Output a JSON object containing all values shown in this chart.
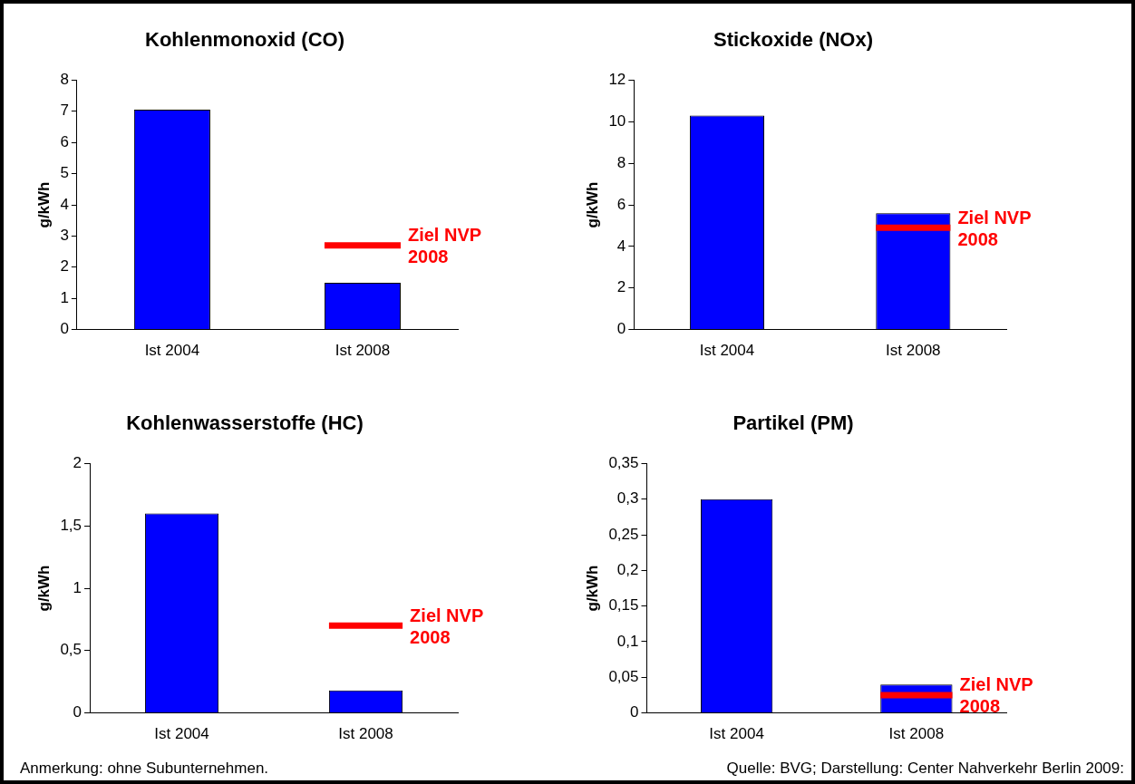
{
  "chart_data": [
    {
      "type": "bar",
      "title": "Kohlenmonoxid (CO)",
      "ylabel": "g/kWh",
      "categories": [
        "Ist 2004",
        "Ist 2008"
      ],
      "values": [
        7.05,
        1.5
      ],
      "color": "#0000ff",
      "ylim": [
        0,
        8
      ],
      "yticks": [
        0,
        1,
        2,
        3,
        4,
        5,
        6,
        7,
        8
      ],
      "grid": false,
      "legend": false,
      "ref_lines": [
        {
          "axis": "y",
          "value": 2.7,
          "label": "Ziel NVP 2008",
          "color": "#ff0000"
        }
      ]
    },
    {
      "type": "bar",
      "title": "Stickoxide (NOx)",
      "ylabel": "g/kWh",
      "categories": [
        "Ist 2004",
        "Ist 2008"
      ],
      "values": [
        10.3,
        5.6
      ],
      "color": "#0000ff",
      "ylim": [
        0,
        12
      ],
      "yticks": [
        0,
        2,
        4,
        6,
        8,
        10,
        12
      ],
      "grid": false,
      "legend": false,
      "ref_lines": [
        {
          "axis": "y",
          "value": 4.9,
          "label": "Ziel NVP 2008",
          "color": "#ff0000"
        }
      ]
    },
    {
      "type": "bar",
      "title": "Kohlenwasserstoffe (HC)",
      "ylabel": "g/kWh",
      "categories": [
        "Ist 2004",
        "Ist 2008"
      ],
      "values": [
        1.6,
        0.18
      ],
      "color": "#0000ff",
      "ylim": [
        0,
        2
      ],
      "yticks": [
        0,
        {
          "value": 0.5,
          "label": "0,5"
        },
        1,
        {
          "value": 1.5,
          "label": "1,5"
        },
        2
      ],
      "grid": false,
      "legend": false,
      "ref_lines": [
        {
          "axis": "y",
          "value": 0.7,
          "label": "Ziel NVP 2008",
          "color": "#ff0000"
        }
      ],
      "annotations": [
        "Anmerkung: ohne Subunternehmen."
      ]
    },
    {
      "type": "bar",
      "title": "Partikel (PM)",
      "ylabel": "g/kWh",
      "categories": [
        "Ist 2004",
        "Ist 2008"
      ],
      "values": [
        0.3,
        0.04
      ],
      "color": "#0000ff",
      "ylim": [
        0,
        0.35
      ],
      "yticks": [
        0,
        {
          "value": 0.05,
          "label": "0,05"
        },
        {
          "value": 0.1,
          "label": "0,1"
        },
        {
          "value": 0.15,
          "label": "0,15"
        },
        {
          "value": 0.2,
          "label": "0,2"
        },
        {
          "value": 0.25,
          "label": "0,25"
        },
        {
          "value": 0.3,
          "label": "0,3"
        },
        {
          "value": 0.35,
          "label": "0,35"
        }
      ],
      "grid": false,
      "legend": false,
      "ref_lines": [
        {
          "axis": "y",
          "value": 0.025,
          "label": "Ziel NVP 2008",
          "color": "#ff0000"
        }
      ],
      "annotations": [
        "Quelle: BVG; Darstellung: Center Nahverkehr Berlin 2009:"
      ]
    }
  ]
}
